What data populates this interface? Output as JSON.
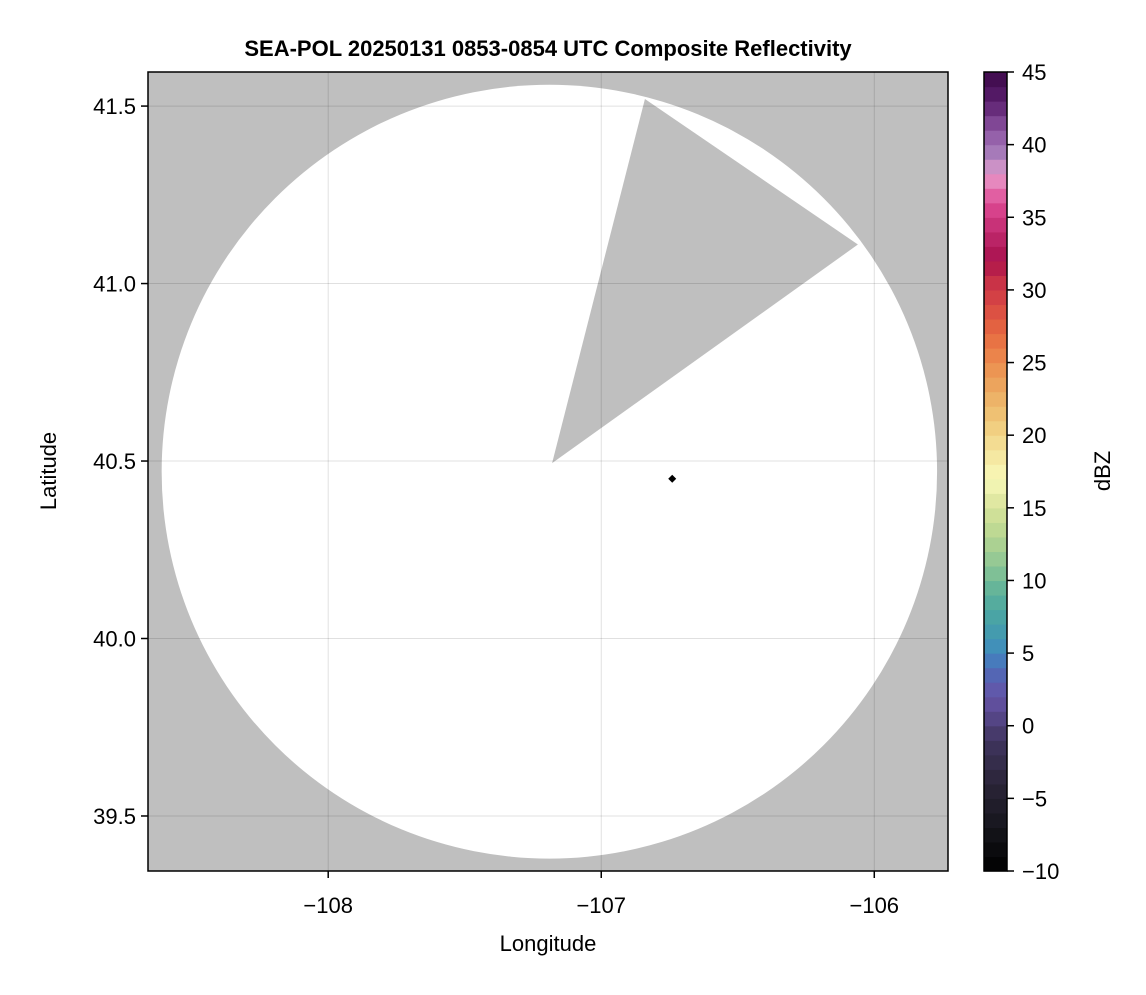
{
  "chart_data": {
    "type": "heatmap",
    "title": "SEA-POL 20250131 0853-0854 UTC Composite Reflectivity",
    "xlabel": "Longitude",
    "ylabel": "Latitude",
    "xlim": [
      -108.66,
      -105.73
    ],
    "ylim": [
      39.345,
      41.596
    ],
    "xticks": [
      -108,
      -107,
      -106
    ],
    "xtick_labels": [
      "−108",
      "−107",
      "−106"
    ],
    "yticks": [
      39.5,
      40.0,
      40.5,
      41.0,
      41.5
    ],
    "ytick_labels": [
      "39.5",
      "40.0",
      "40.5",
      "41.0",
      "41.5"
    ],
    "grid": true,
    "background_color": "#bfbfbf",
    "no_echo_color": "#ffffff",
    "radar_coverage": {
      "center_lon": -107.19,
      "center_lat": 40.47,
      "radius_lon_deg": 1.42,
      "radius_lat_deg": 1.09,
      "blocked_sector": [
        [
          -107.18,
          40.494
        ],
        [
          -106.84,
          41.52
        ],
        [
          -106.06,
          41.11
        ]
      ]
    },
    "marker": {
      "lon": -106.74,
      "lat": 40.45,
      "color": "#000000",
      "shape": "diamond"
    },
    "colorbar": {
      "label": "dBZ",
      "range": [
        -10,
        45
      ],
      "step": 1,
      "ticks": [
        -10,
        -5,
        0,
        5,
        10,
        15,
        20,
        25,
        30,
        35,
        40,
        45
      ],
      "tick_labels": [
        "−10",
        "−5",
        "0",
        "5",
        "10",
        "15",
        "20",
        "25",
        "30",
        "35",
        "40",
        "45"
      ],
      "color_anchors": [
        [
          -10,
          "#000000"
        ],
        [
          -7,
          "#16151c"
        ],
        [
          -4,
          "#2a2438"
        ],
        [
          -1,
          "#40355e"
        ],
        [
          1,
          "#5a4a92"
        ],
        [
          2,
          "#6653a6"
        ],
        [
          4,
          "#4e6cb8"
        ],
        [
          5,
          "#3f8abf"
        ],
        [
          7,
          "#45a0a8"
        ],
        [
          9,
          "#5ab09a"
        ],
        [
          11,
          "#8bc595"
        ],
        [
          13,
          "#b5d591"
        ],
        [
          15,
          "#d8e39a"
        ],
        [
          17,
          "#f8f8b8"
        ],
        [
          19,
          "#f4e39a"
        ],
        [
          21,
          "#f0c878"
        ],
        [
          23,
          "#ecac62"
        ],
        [
          25,
          "#ec8d4e"
        ],
        [
          27,
          "#e66a40"
        ],
        [
          29,
          "#d84844"
        ],
        [
          31,
          "#c42c48"
        ],
        [
          32,
          "#a8104c"
        ],
        [
          34,
          "#c02a6e"
        ],
        [
          36,
          "#de4a94"
        ],
        [
          38,
          "#e89ccc"
        ],
        [
          39,
          "#ae86c0"
        ],
        [
          41,
          "#8c54a2"
        ],
        [
          43,
          "#5a1f6e"
        ],
        [
          45,
          "#3c0848"
        ]
      ]
    }
  }
}
